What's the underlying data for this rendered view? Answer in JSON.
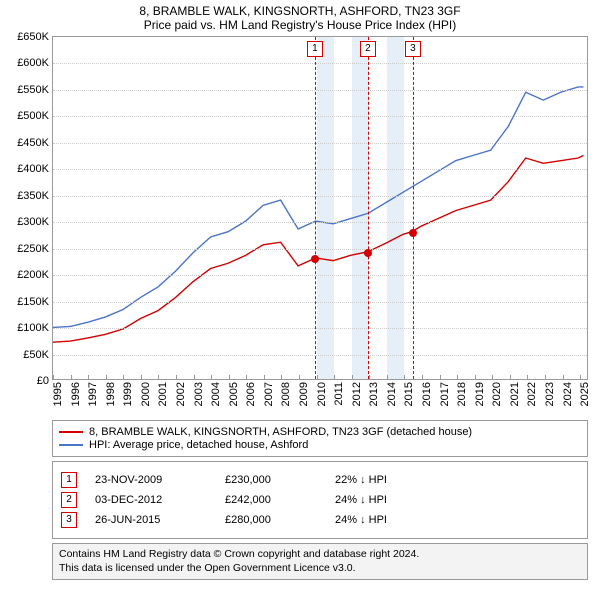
{
  "title": "8, BRAMBLE WALK, KINGSNORTH, ASHFORD, TN23 3GF",
  "subtitle": "Price paid vs. HM Land Registry's House Price Index (HPI)",
  "chart": {
    "type": "line",
    "xlim": [
      1995,
      2025.5
    ],
    "ylim": [
      0,
      650000
    ],
    "ytick_step": 50000,
    "ytick_format": "£{k}K",
    "yzero_label": "£0",
    "x_years": [
      1995,
      1996,
      1997,
      1998,
      1999,
      2000,
      2001,
      2002,
      2003,
      2004,
      2005,
      2006,
      2007,
      2008,
      2009,
      2010,
      2011,
      2012,
      2013,
      2014,
      2015,
      2016,
      2017,
      2018,
      2019,
      2020,
      2021,
      2022,
      2023,
      2024,
      2025
    ],
    "background_color": "#ffffff",
    "grid_color": "#cccccc",
    "border_color": "#999999",
    "band_color": "#e6eef8",
    "band_ranges": [
      [
        2010,
        2011
      ],
      [
        2012,
        2013
      ],
      [
        2014,
        2015
      ]
    ],
    "title_fontsize": 12,
    "label_fontsize": 11,
    "line_width": 1.4
  },
  "series": [
    {
      "id": "property",
      "legend_label": "8, BRAMBLE WALK, KINGSNORTH, ASHFORD, TN23 3GF (detached house)",
      "color": "#d40000",
      "x": [
        1995,
        1996,
        1997,
        1998,
        1999,
        2000,
        2001,
        2002,
        2003,
        2004,
        2005,
        2006,
        2007,
        2008,
        2009,
        2010,
        2011,
        2012,
        2013,
        2014,
        2015,
        2015.5,
        2016,
        2017,
        2018,
        2019,
        2020,
        2021,
        2022,
        2023,
        2024,
        2025,
        2025.3
      ],
      "y": [
        70000,
        72000,
        78000,
        85000,
        95000,
        115000,
        130000,
        155000,
        185000,
        210000,
        220000,
        235000,
        255000,
        260000,
        215000,
        230000,
        225000,
        235000,
        242000,
        258000,
        275000,
        280000,
        290000,
        305000,
        320000,
        330000,
        340000,
        375000,
        420000,
        410000,
        415000,
        420000,
        425000
      ]
    },
    {
      "id": "hpi",
      "legend_label": "HPI: Average price, detached house, Ashford",
      "color": "#4a74c9",
      "x": [
        1995,
        1996,
        1997,
        1998,
        1999,
        2000,
        2001,
        2002,
        2003,
        2004,
        2005,
        2006,
        2007,
        2008,
        2009,
        2010,
        2011,
        2012,
        2013,
        2014,
        2015,
        2016,
        2017,
        2018,
        2019,
        2020,
        2021,
        2022,
        2023,
        2024,
        2025,
        2025.3
      ],
      "y": [
        98000,
        100000,
        108000,
        118000,
        132000,
        155000,
        175000,
        205000,
        240000,
        270000,
        280000,
        300000,
        330000,
        340000,
        285000,
        300000,
        295000,
        305000,
        315000,
        335000,
        355000,
        375000,
        395000,
        415000,
        425000,
        435000,
        480000,
        545000,
        530000,
        545000,
        555000,
        555000
      ]
    }
  ],
  "events": [
    {
      "n": "1",
      "date": "23-NOV-2009",
      "x": 2009.9,
      "price_value": 230000,
      "price": "£230,000",
      "diff": "22% ↓ HPI",
      "color": "#d40000"
    },
    {
      "n": "2",
      "date": "03-DEC-2012",
      "x": 2012.92,
      "price_value": 242000,
      "price": "£242,000",
      "diff": "24% ↓ HPI",
      "color": "#d40000"
    },
    {
      "n": "3",
      "date": "26-JUN-2015",
      "x": 2015.48,
      "price_value": 280000,
      "price": "£280,000",
      "diff": "24% ↓ HPI",
      "color": "#d40000"
    }
  ],
  "footer": {
    "line1": "Contains HM Land Registry data © Crown copyright and database right 2024.",
    "line2": "This data is licensed under the Open Government Licence v3.0."
  }
}
